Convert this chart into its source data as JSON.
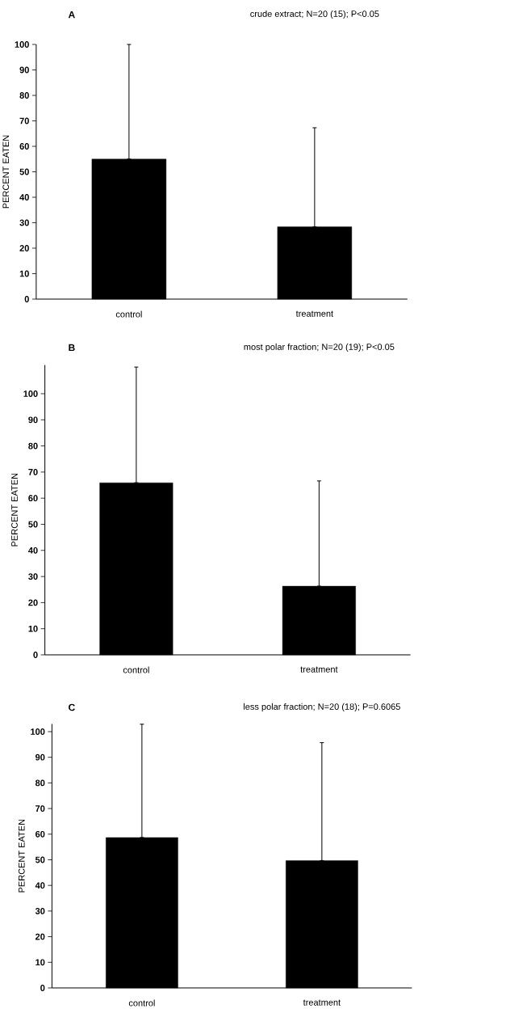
{
  "chart_data": [
    {
      "type": "bar",
      "title": "crude extract; N=20 (15); P<0.05",
      "ylabel": "PERCENT EATEN",
      "annotations": [
        "A"
      ],
      "categories": [
        "control",
        "treatment"
      ],
      "values": [
        55,
        28.4
      ],
      "errors": [
        [
          55,
          100
        ],
        [
          28.4,
          67.3
        ]
      ],
      "color": "#000000",
      "ylim": [
        0,
        100
      ],
      "yticks": [
        0,
        10,
        20,
        30,
        40,
        50,
        60,
        70,
        80,
        90,
        100
      ]
    },
    {
      "type": "bar",
      "title": "most polar fraction; N=20 (19); P<0.05",
      "ylabel": "PERCENT EATEN",
      "annotations": [
        "B"
      ],
      "categories": [
        "control",
        "treatment"
      ],
      "values": [
        65.9,
        26.3
      ],
      "errors": [
        [
          65.9,
          110.2
        ],
        [
          26.3,
          66.6
        ]
      ],
      "color": "#000000",
      "ylim": [
        0,
        111
      ],
      "yticks": [
        0,
        10,
        20,
        30,
        40,
        50,
        60,
        70,
        80,
        90,
        100
      ]
    },
    {
      "type": "bar",
      "title": "less polar fraction; N=20 (18); P=0.6065",
      "ylabel": "PERCENT EATEN",
      "annotations": [
        "C"
      ],
      "categories": [
        "control",
        "treatment"
      ],
      "values": [
        58.7,
        49.7
      ],
      "errors": [
        [
          58.7,
          102.9
        ],
        [
          49.7,
          95.7
        ]
      ],
      "color": "#000000",
      "ylim": [
        0,
        103
      ],
      "yticks": [
        0,
        10,
        20,
        30,
        40,
        50,
        60,
        70,
        80,
        90,
        100
      ]
    }
  ]
}
